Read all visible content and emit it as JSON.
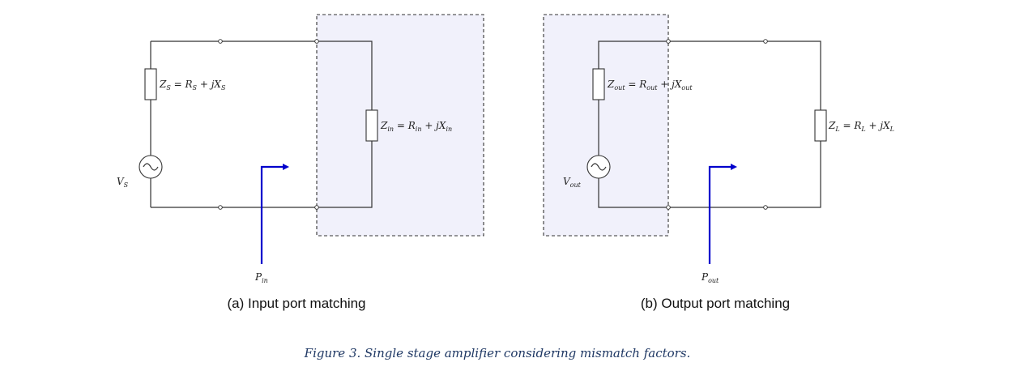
{
  "diagram_a": {
    "zs_label": "Z",
    "zs_sub": "S",
    "zs_eq": " = R",
    "zs_eq_sub": "S",
    "zs_tail": " + jX",
    "zs_tail_sub": "S",
    "zin_label": "Z",
    "zin_sub": "in",
    "zin_eq": " = R",
    "zin_eq_sub": "in",
    "zin_tail": " + jX",
    "zin_tail_sub": "in",
    "vs_label": "V",
    "vs_sub": "S",
    "p_label": "P",
    "p_sub": "in",
    "caption": "(a)  Input port matching"
  },
  "diagram_b": {
    "zout_label": "Z",
    "zout_sub": "out",
    "zout_eq": " = R",
    "zout_eq_sub": "out",
    "zout_tail": " + jX",
    "zout_tail_sub": "out",
    "zl_label": "Z",
    "zl_sub": "L",
    "zl_eq": " = R",
    "zl_eq_sub": "L",
    "zl_tail": " + jX",
    "zl_tail_sub": "L",
    "vout_label": "V",
    "vout_sub": "out",
    "p_label": "P",
    "p_sub": "out",
    "caption": "(b)  Output port matching"
  },
  "figure_caption": "Figure 3. Single stage amplifier considering mismatch factors.",
  "colors": {
    "arrow": "#0000cc",
    "shade": "#eeeefa",
    "caption": "#1f3864"
  }
}
